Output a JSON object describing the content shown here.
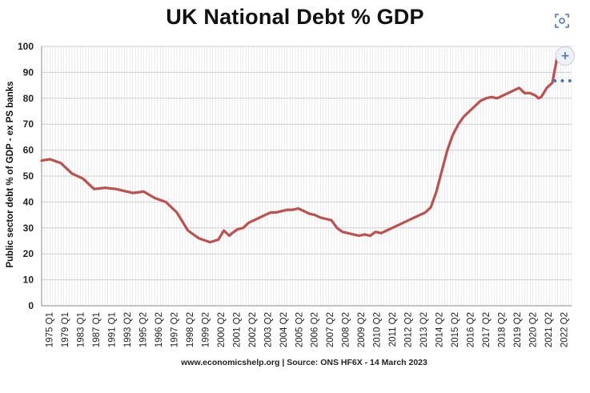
{
  "chart_data": {
    "type": "line",
    "title": "UK National Debt % GDP",
    "ylabel": "Public sector debt % of GDP - ex PS banks",
    "xlabel": "",
    "ylim": [
      0,
      100
    ],
    "yticks": [
      0,
      10,
      20,
      30,
      40,
      50,
      60,
      70,
      80,
      90,
      100
    ],
    "xlim": [
      1975.0,
      2023.0
    ],
    "xtick_labels": [
      "1975 Q1",
      "1979 Q1",
      "1983 Q1",
      "1987 Q1",
      "1991 Q1",
      "1993 Q2",
      "1995 Q2",
      "1996 Q2",
      "1997 Q2",
      "1998 Q2",
      "1999 Q2",
      "2000 Q2",
      "2001 Q2",
      "2002 Q2",
      "2003 Q2",
      "2004 Q2",
      "2005 Q2",
      "2006 Q2",
      "2007 Q2",
      "2008 Q2",
      "2009 Q2",
      "2010 Q2",
      "2011 Q2",
      "2012 Q2",
      "2013 Q2",
      "2014 Q2",
      "2015 Q2",
      "2016 Q2",
      "2017 Q2",
      "2018 Q2",
      "2019 Q2",
      "2020 Q2",
      "2021 Q2",
      "2022 Q2"
    ],
    "grid": true,
    "legend": "none",
    "line_color": "#c0504d",
    "series": [
      {
        "x": [
          "1975 Q1",
          "1975 Q4",
          "1976 Q4",
          "1977 Q4",
          "1978 Q4",
          "1979 Q4",
          "1980 Q4",
          "1981 Q4",
          "1982 Q4",
          "1983 Q2",
          "1984 Q2",
          "1985 Q2",
          "1986 Q2",
          "1987 Q2",
          "1988 Q2",
          "1989 Q2",
          "1990 Q2",
          "1991 Q1",
          "1991 Q3",
          "1992 Q1",
          "1992 Q2",
          "1992 Q4",
          "1993 Q2",
          "1993 Q4",
          "1994 Q2",
          "1994 Q4",
          "1995 Q2",
          "1995 Q4",
          "1996 Q2",
          "1996 Q4",
          "1997 Q2",
          "1997 Q4",
          "1998 Q2",
          "1998 Q4",
          "1999 Q2",
          "1999 Q4",
          "2000 Q2",
          "2000 Q4",
          "2001 Q2",
          "2001 Q4",
          "2002 Q2",
          "2002 Q4",
          "2003 Q2",
          "2003 Q4",
          "2004 Q2",
          "2004 Q4",
          "2005 Q2",
          "2005 Q4",
          "2006 Q2",
          "2006 Q4",
          "2007 Q2",
          "2007 Q4",
          "2008 Q2",
          "2008 Q4",
          "2009 Q2",
          "2009 Q4",
          "2010 Q2",
          "2010 Q4",
          "2011 Q2",
          "2011 Q4",
          "2012 Q2",
          "2012 Q4",
          "2013 Q2",
          "2013 Q4",
          "2014 Q2",
          "2014 Q4",
          "2015 Q2",
          "2015 Q4",
          "2016 Q2",
          "2016 Q4",
          "2017 Q2",
          "2017 Q4",
          "2018 Q2",
          "2018 Q4",
          "2019 Q2",
          "2019 Q4",
          "2020 Q1",
          "2020 Q2",
          "2020 Q4",
          "2021 Q2",
          "2021 Q4",
          "2022 Q2",
          "2022 Q4"
        ],
        "values": [
          56,
          56.5,
          55,
          51,
          49,
          45,
          45.5,
          45,
          44,
          43.5,
          44,
          41.5,
          40,
          36,
          29,
          26,
          24.5,
          25.5,
          29,
          27,
          28,
          29.5,
          30,
          32,
          33,
          34,
          35,
          36,
          36,
          36.5,
          37,
          37,
          37.5,
          36.5,
          35.5,
          35,
          34,
          33.5,
          33,
          30,
          28.5,
          28,
          27.5,
          27,
          27.5,
          27,
          28.5,
          28,
          29,
          30,
          31,
          32,
          33,
          34,
          35,
          36,
          38,
          44,
          52,
          60,
          66,
          70,
          73,
          75,
          77,
          79,
          80,
          80.5,
          80,
          81,
          82,
          83,
          84,
          82,
          82,
          81,
          80,
          80.5,
          84,
          86,
          97,
          99,
          98
        ]
      }
    ],
    "source_note": "www.economicshelp.org | Source: ONS HF6X - 14 March 2023"
  },
  "toolbar": {
    "lens_icon": "visual-search-icon",
    "zoom_icon": "zoom-in-icon",
    "zoom_symbol": "+",
    "more_icon": "more-options-icon",
    "more_symbol": "•••"
  }
}
